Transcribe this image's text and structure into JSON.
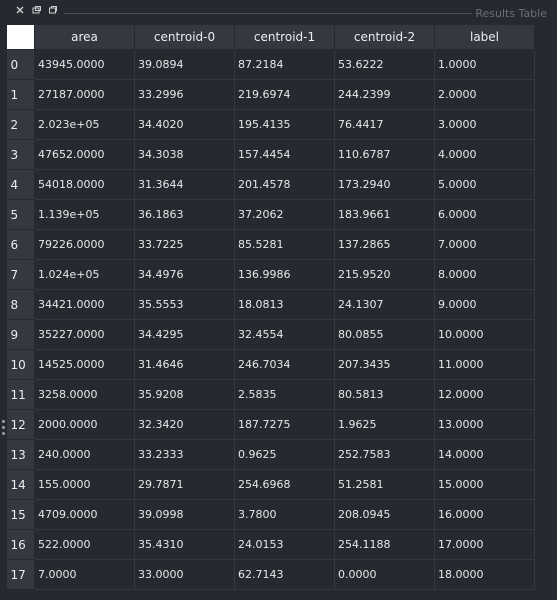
{
  "window": {
    "title": "Results Table"
  },
  "table": {
    "columns": [
      "area",
      "centroid-0",
      "centroid-1",
      "centroid-2",
      "label"
    ],
    "rows": [
      {
        "index": "0",
        "cells": [
          "43945.0000",
          "39.0894",
          "87.2184",
          "53.6222",
          "1.0000"
        ]
      },
      {
        "index": "1",
        "cells": [
          "27187.0000",
          "33.2996",
          "219.6974",
          "244.2399",
          "2.0000"
        ]
      },
      {
        "index": "2",
        "cells": [
          "2.023e+05",
          "34.4020",
          "195.4135",
          "76.4417",
          "3.0000"
        ]
      },
      {
        "index": "3",
        "cells": [
          "47652.0000",
          "34.3038",
          "157.4454",
          "110.6787",
          "4.0000"
        ]
      },
      {
        "index": "4",
        "cells": [
          "54018.0000",
          "31.3644",
          "201.4578",
          "173.2940",
          "5.0000"
        ]
      },
      {
        "index": "5",
        "cells": [
          "1.139e+05",
          "36.1863",
          "37.2062",
          "183.9661",
          "6.0000"
        ]
      },
      {
        "index": "6",
        "cells": [
          "79226.0000",
          "33.7225",
          "85.5281",
          "137.2865",
          "7.0000"
        ]
      },
      {
        "index": "7",
        "cells": [
          "1.024e+05",
          "34.4976",
          "136.9986",
          "215.9520",
          "8.0000"
        ]
      },
      {
        "index": "8",
        "cells": [
          "34421.0000",
          "35.5553",
          "18.0813",
          "24.1307",
          "9.0000"
        ]
      },
      {
        "index": "9",
        "cells": [
          "35227.0000",
          "34.4295",
          "32.4554",
          "80.0855",
          "10.0000"
        ]
      },
      {
        "index": "10",
        "cells": [
          "14525.0000",
          "31.4646",
          "246.7034",
          "207.3435",
          "11.0000"
        ]
      },
      {
        "index": "11",
        "cells": [
          "3258.0000",
          "35.9208",
          "2.5835",
          "80.5813",
          "12.0000"
        ]
      },
      {
        "index": "12",
        "cells": [
          "2000.0000",
          "32.3420",
          "187.7275",
          "1.9625",
          "13.0000"
        ]
      },
      {
        "index": "13",
        "cells": [
          "240.0000",
          "33.2333",
          "0.9625",
          "252.7583",
          "14.0000"
        ]
      },
      {
        "index": "14",
        "cells": [
          "155.0000",
          "29.7871",
          "254.6968",
          "51.2581",
          "15.0000"
        ]
      },
      {
        "index": "15",
        "cells": [
          "4709.0000",
          "39.0998",
          "3.7800",
          "208.0945",
          "16.0000"
        ]
      },
      {
        "index": "16",
        "cells": [
          "522.0000",
          "35.4310",
          "24.0153",
          "254.1188",
          "17.0000"
        ]
      },
      {
        "index": "17",
        "cells": [
          "7.0000",
          "33.0000",
          "62.7143",
          "0.0000",
          "18.0000"
        ]
      }
    ]
  }
}
